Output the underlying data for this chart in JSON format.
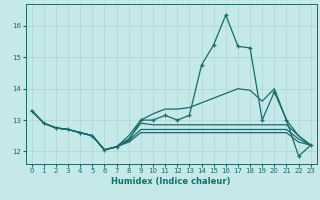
{
  "title": "",
  "xlabel": "Humidex (Indice chaleur)",
  "ylabel": "",
  "background_color": "#c5e8e8",
  "grid_color": "#add4d4",
  "line_color": "#1a6b6b",
  "xlim": [
    -0.5,
    23.5
  ],
  "ylim": [
    11.6,
    16.7
  ],
  "xticks": [
    0,
    1,
    2,
    3,
    4,
    5,
    6,
    7,
    8,
    9,
    10,
    11,
    12,
    13,
    14,
    15,
    16,
    17,
    18,
    19,
    20,
    21,
    22,
    23
  ],
  "yticks": [
    12,
    13,
    14,
    15,
    16
  ],
  "series": [
    {
      "x": [
        0,
        1,
        2,
        3,
        4,
        5,
        6,
        7,
        8,
        9,
        10,
        11,
        12,
        13,
        14,
        15,
        16,
        17,
        18,
        19,
        20,
        21,
        22,
        23
      ],
      "y": [
        13.3,
        12.9,
        12.75,
        12.7,
        12.6,
        12.5,
        12.05,
        12.15,
        12.35,
        13.0,
        13.0,
        13.15,
        13.0,
        13.15,
        14.75,
        15.4,
        16.35,
        15.35,
        15.3,
        13.0,
        13.9,
        13.0,
        11.85,
        12.2
      ],
      "marker": true
    },
    {
      "x": [
        0,
        1,
        2,
        3,
        4,
        5,
        6,
        7,
        8,
        9,
        10,
        11,
        12,
        13,
        14,
        15,
        16,
        17,
        18,
        19,
        20,
        21,
        22,
        23
      ],
      "y": [
        13.3,
        12.9,
        12.75,
        12.7,
        12.6,
        12.5,
        12.05,
        12.15,
        12.5,
        13.0,
        13.2,
        13.35,
        13.35,
        13.4,
        13.55,
        13.7,
        13.85,
        14.0,
        13.95,
        13.6,
        14.0,
        13.0,
        12.5,
        12.2
      ],
      "marker": false
    },
    {
      "x": [
        0,
        1,
        2,
        3,
        4,
        5,
        6,
        7,
        8,
        9,
        10,
        11,
        12,
        13,
        14,
        15,
        16,
        17,
        18,
        19,
        20,
        21,
        22,
        23
      ],
      "y": [
        13.3,
        12.9,
        12.75,
        12.7,
        12.6,
        12.5,
        12.05,
        12.15,
        12.4,
        12.9,
        12.85,
        12.85,
        12.85,
        12.85,
        12.85,
        12.85,
        12.85,
        12.85,
        12.85,
        12.85,
        12.85,
        12.85,
        12.5,
        12.2
      ],
      "marker": false
    },
    {
      "x": [
        0,
        1,
        2,
        3,
        4,
        5,
        6,
        7,
        8,
        9,
        10,
        11,
        12,
        13,
        14,
        15,
        16,
        17,
        18,
        19,
        20,
        21,
        22,
        23
      ],
      "y": [
        13.3,
        12.9,
        12.75,
        12.7,
        12.6,
        12.5,
        12.05,
        12.15,
        12.35,
        12.7,
        12.7,
        12.7,
        12.7,
        12.7,
        12.7,
        12.7,
        12.7,
        12.7,
        12.7,
        12.7,
        12.7,
        12.7,
        12.4,
        12.2
      ],
      "marker": false
    },
    {
      "x": [
        0,
        1,
        2,
        3,
        4,
        5,
        6,
        7,
        8,
        9,
        10,
        11,
        12,
        13,
        14,
        15,
        16,
        17,
        18,
        19,
        20,
        21,
        22,
        23
      ],
      "y": [
        13.3,
        12.9,
        12.75,
        12.7,
        12.6,
        12.5,
        12.05,
        12.15,
        12.3,
        12.6,
        12.6,
        12.6,
        12.6,
        12.6,
        12.6,
        12.6,
        12.6,
        12.6,
        12.6,
        12.6,
        12.6,
        12.6,
        12.3,
        12.2
      ],
      "marker": false
    }
  ]
}
